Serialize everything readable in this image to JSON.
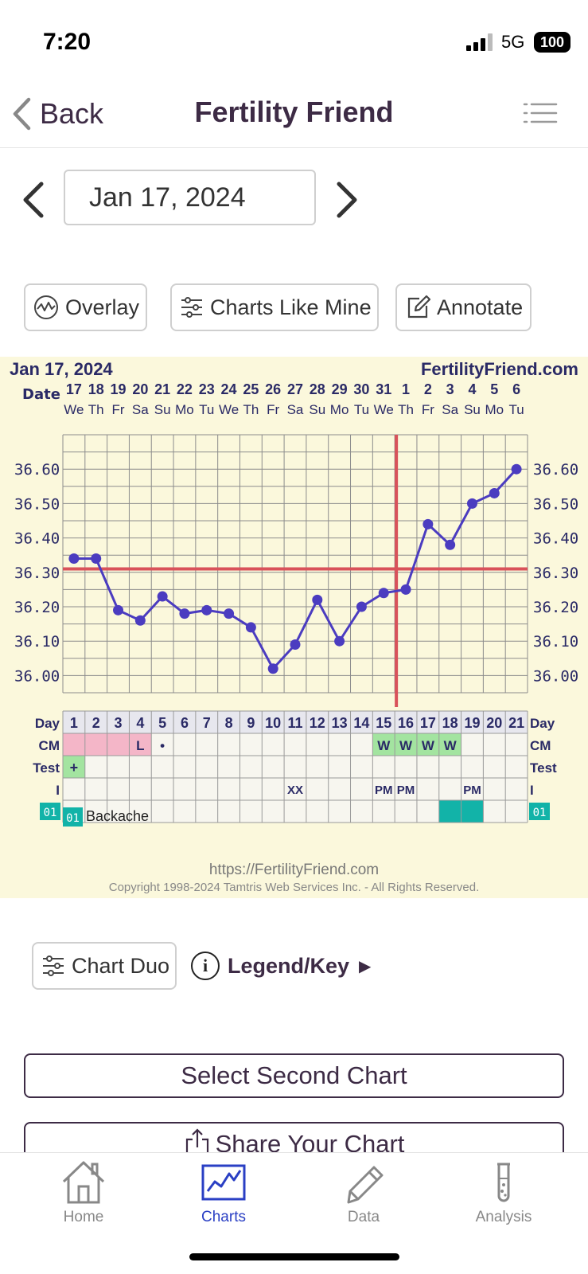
{
  "status_bar": {
    "time": "7:20",
    "network": "5G",
    "battery": "100"
  },
  "nav": {
    "back_label": "Back",
    "title": "Fertility Friend"
  },
  "date_selector": {
    "value": "Jan 17, 2024"
  },
  "toolbar": {
    "overlay": "Overlay",
    "charts_like_mine": "Charts Like Mine",
    "annotate": "Annotate"
  },
  "chart_header": {
    "date": "Jan 17, 2024",
    "site": "FertilityFriend.com"
  },
  "chart_footer": {
    "url": "https://FertilityFriend.com",
    "copyright": "Copyright 1998-2024 Tamtris Web Services Inc. - All Rights Reserved."
  },
  "chart_data": {
    "type": "line",
    "dates": [
      "17",
      "18",
      "19",
      "20",
      "21",
      "22",
      "23",
      "24",
      "25",
      "26",
      "27",
      "28",
      "29",
      "30",
      "31",
      "1",
      "2",
      "3",
      "4",
      "5",
      "6"
    ],
    "weekdays": [
      "We",
      "Th",
      "Fr",
      "Sa",
      "Su",
      "Mo",
      "Tu",
      "We",
      "Th",
      "Fr",
      "Sa",
      "Su",
      "Mo",
      "Tu",
      "We",
      "Th",
      "Fr",
      "Sa",
      "Su",
      "Mo",
      "Tu"
    ],
    "cycle_days": [
      "1",
      "2",
      "3",
      "4",
      "5",
      "6",
      "7",
      "8",
      "9",
      "10",
      "11",
      "12",
      "13",
      "14",
      "15",
      "16",
      "17",
      "18",
      "19",
      "20",
      "21"
    ],
    "temperatures": [
      36.34,
      36.34,
      36.19,
      36.16,
      36.23,
      36.18,
      36.19,
      36.18,
      36.14,
      36.02,
      36.09,
      36.22,
      36.1,
      36.2,
      36.24,
      36.25,
      36.44,
      36.38,
      36.5,
      36.53,
      36.6
    ],
    "ylim": [
      35.95,
      36.7
    ],
    "ytick_labels": [
      "36.60",
      "36.50",
      "36.40",
      "36.30",
      "36.20",
      "36.10",
      "36.00"
    ],
    "coverline": 36.31,
    "ovulation_day": 16,
    "grid": true,
    "row_labels": {
      "date": "Date",
      "day": "Day",
      "cm": "CM",
      "test": "Test",
      "intercourse": "I",
      "symptom": "01"
    },
    "cm": [
      "",
      "",
      "",
      "L",
      "•",
      "",
      "",
      "",
      "",
      "",
      "",
      "",
      "",
      "",
      "W",
      "W",
      "W",
      "W",
      "",
      "",
      ""
    ],
    "cm_colors": [
      "pink",
      "pink",
      "pink",
      "pink",
      "",
      "",
      "",
      "",
      "",
      "",
      "",
      "",
      "",
      "",
      "green",
      "green",
      "green",
      "green",
      "",
      "",
      ""
    ],
    "tests": [
      "+",
      "",
      "",
      "",
      "",
      "",
      "",
      "",
      "",
      "",
      "",
      "",
      "",
      "",
      "",
      "",
      "",
      "",
      "",
      "",
      ""
    ],
    "intercourse": [
      "",
      "",
      "",
      "",
      "",
      "",
      "",
      "",
      "",
      "",
      "XX",
      "",
      "",
      "",
      "PM",
      "PM",
      "",
      "",
      "PM",
      "",
      ""
    ],
    "symptom_marked": [
      false,
      false,
      false,
      false,
      false,
      false,
      false,
      false,
      false,
      false,
      false,
      false,
      false,
      false,
      false,
      false,
      false,
      true,
      true,
      false,
      false
    ],
    "symptom_legend": {
      "code": "01",
      "label": "Backache"
    },
    "colors": {
      "line": "#4b3cc0",
      "coverline": "#d9525a",
      "pink": "#f4b6c8",
      "green": "#a3e4a0",
      "teal": "#12b3a8",
      "background": "#fbf8dc"
    }
  },
  "chart_duo": {
    "label": "Chart Duo"
  },
  "legend": {
    "label": "Legend/Key",
    "arrow": "▶",
    "info": "i"
  },
  "buttons": {
    "select_second": "Select Second Chart",
    "share": "Share Your Chart"
  },
  "tabs": [
    {
      "label": "Home",
      "icon": "house-icon",
      "active": false
    },
    {
      "label": "Charts",
      "icon": "chart-icon",
      "active": true
    },
    {
      "label": "Data",
      "icon": "pencil-icon",
      "active": false
    },
    {
      "label": "Analysis",
      "icon": "test-tube-icon",
      "active": false
    }
  ]
}
